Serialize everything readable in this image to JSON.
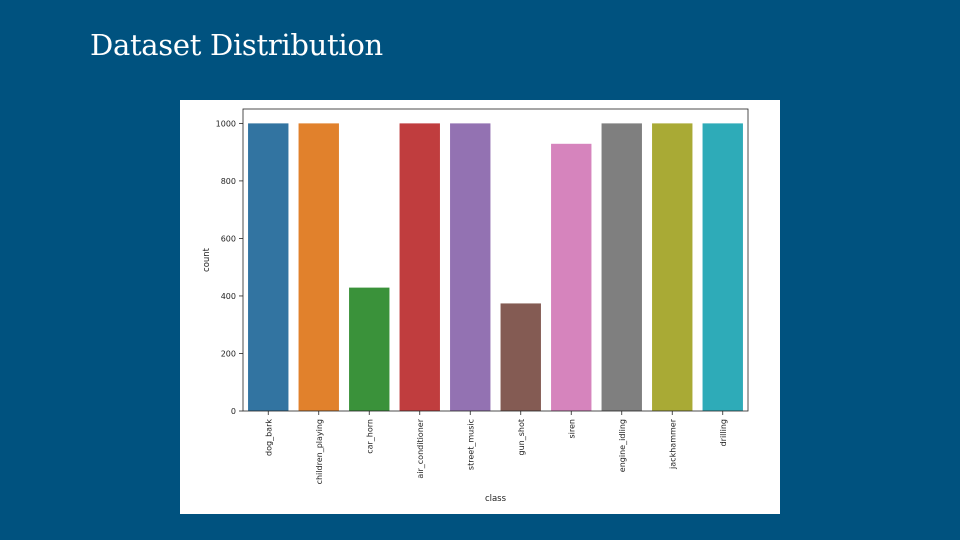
{
  "slide": {
    "title": "Dataset Distribution"
  },
  "chart_data": {
    "type": "bar",
    "xlabel": "class",
    "ylabel": "count",
    "ylim": [
      0,
      1050
    ],
    "yticks": [
      0,
      200,
      400,
      600,
      800,
      1000
    ],
    "categories": [
      "dog_bark",
      "children_playing",
      "car_horn",
      "air_conditioner",
      "street_music",
      "gun_shot",
      "siren",
      "engine_idling",
      "jackhammer",
      "drilling"
    ],
    "values": [
      1000,
      1000,
      429,
      1000,
      1000,
      374,
      929,
      1000,
      1000,
      1000
    ],
    "colors": [
      "#3274a1",
      "#e1812c",
      "#3a923a",
      "#c03d3e",
      "#9372b2",
      "#845b53",
      "#d684bd",
      "#7f7f7f",
      "#a9aa35",
      "#2eabb8"
    ],
    "grid": false,
    "legend": "none"
  }
}
